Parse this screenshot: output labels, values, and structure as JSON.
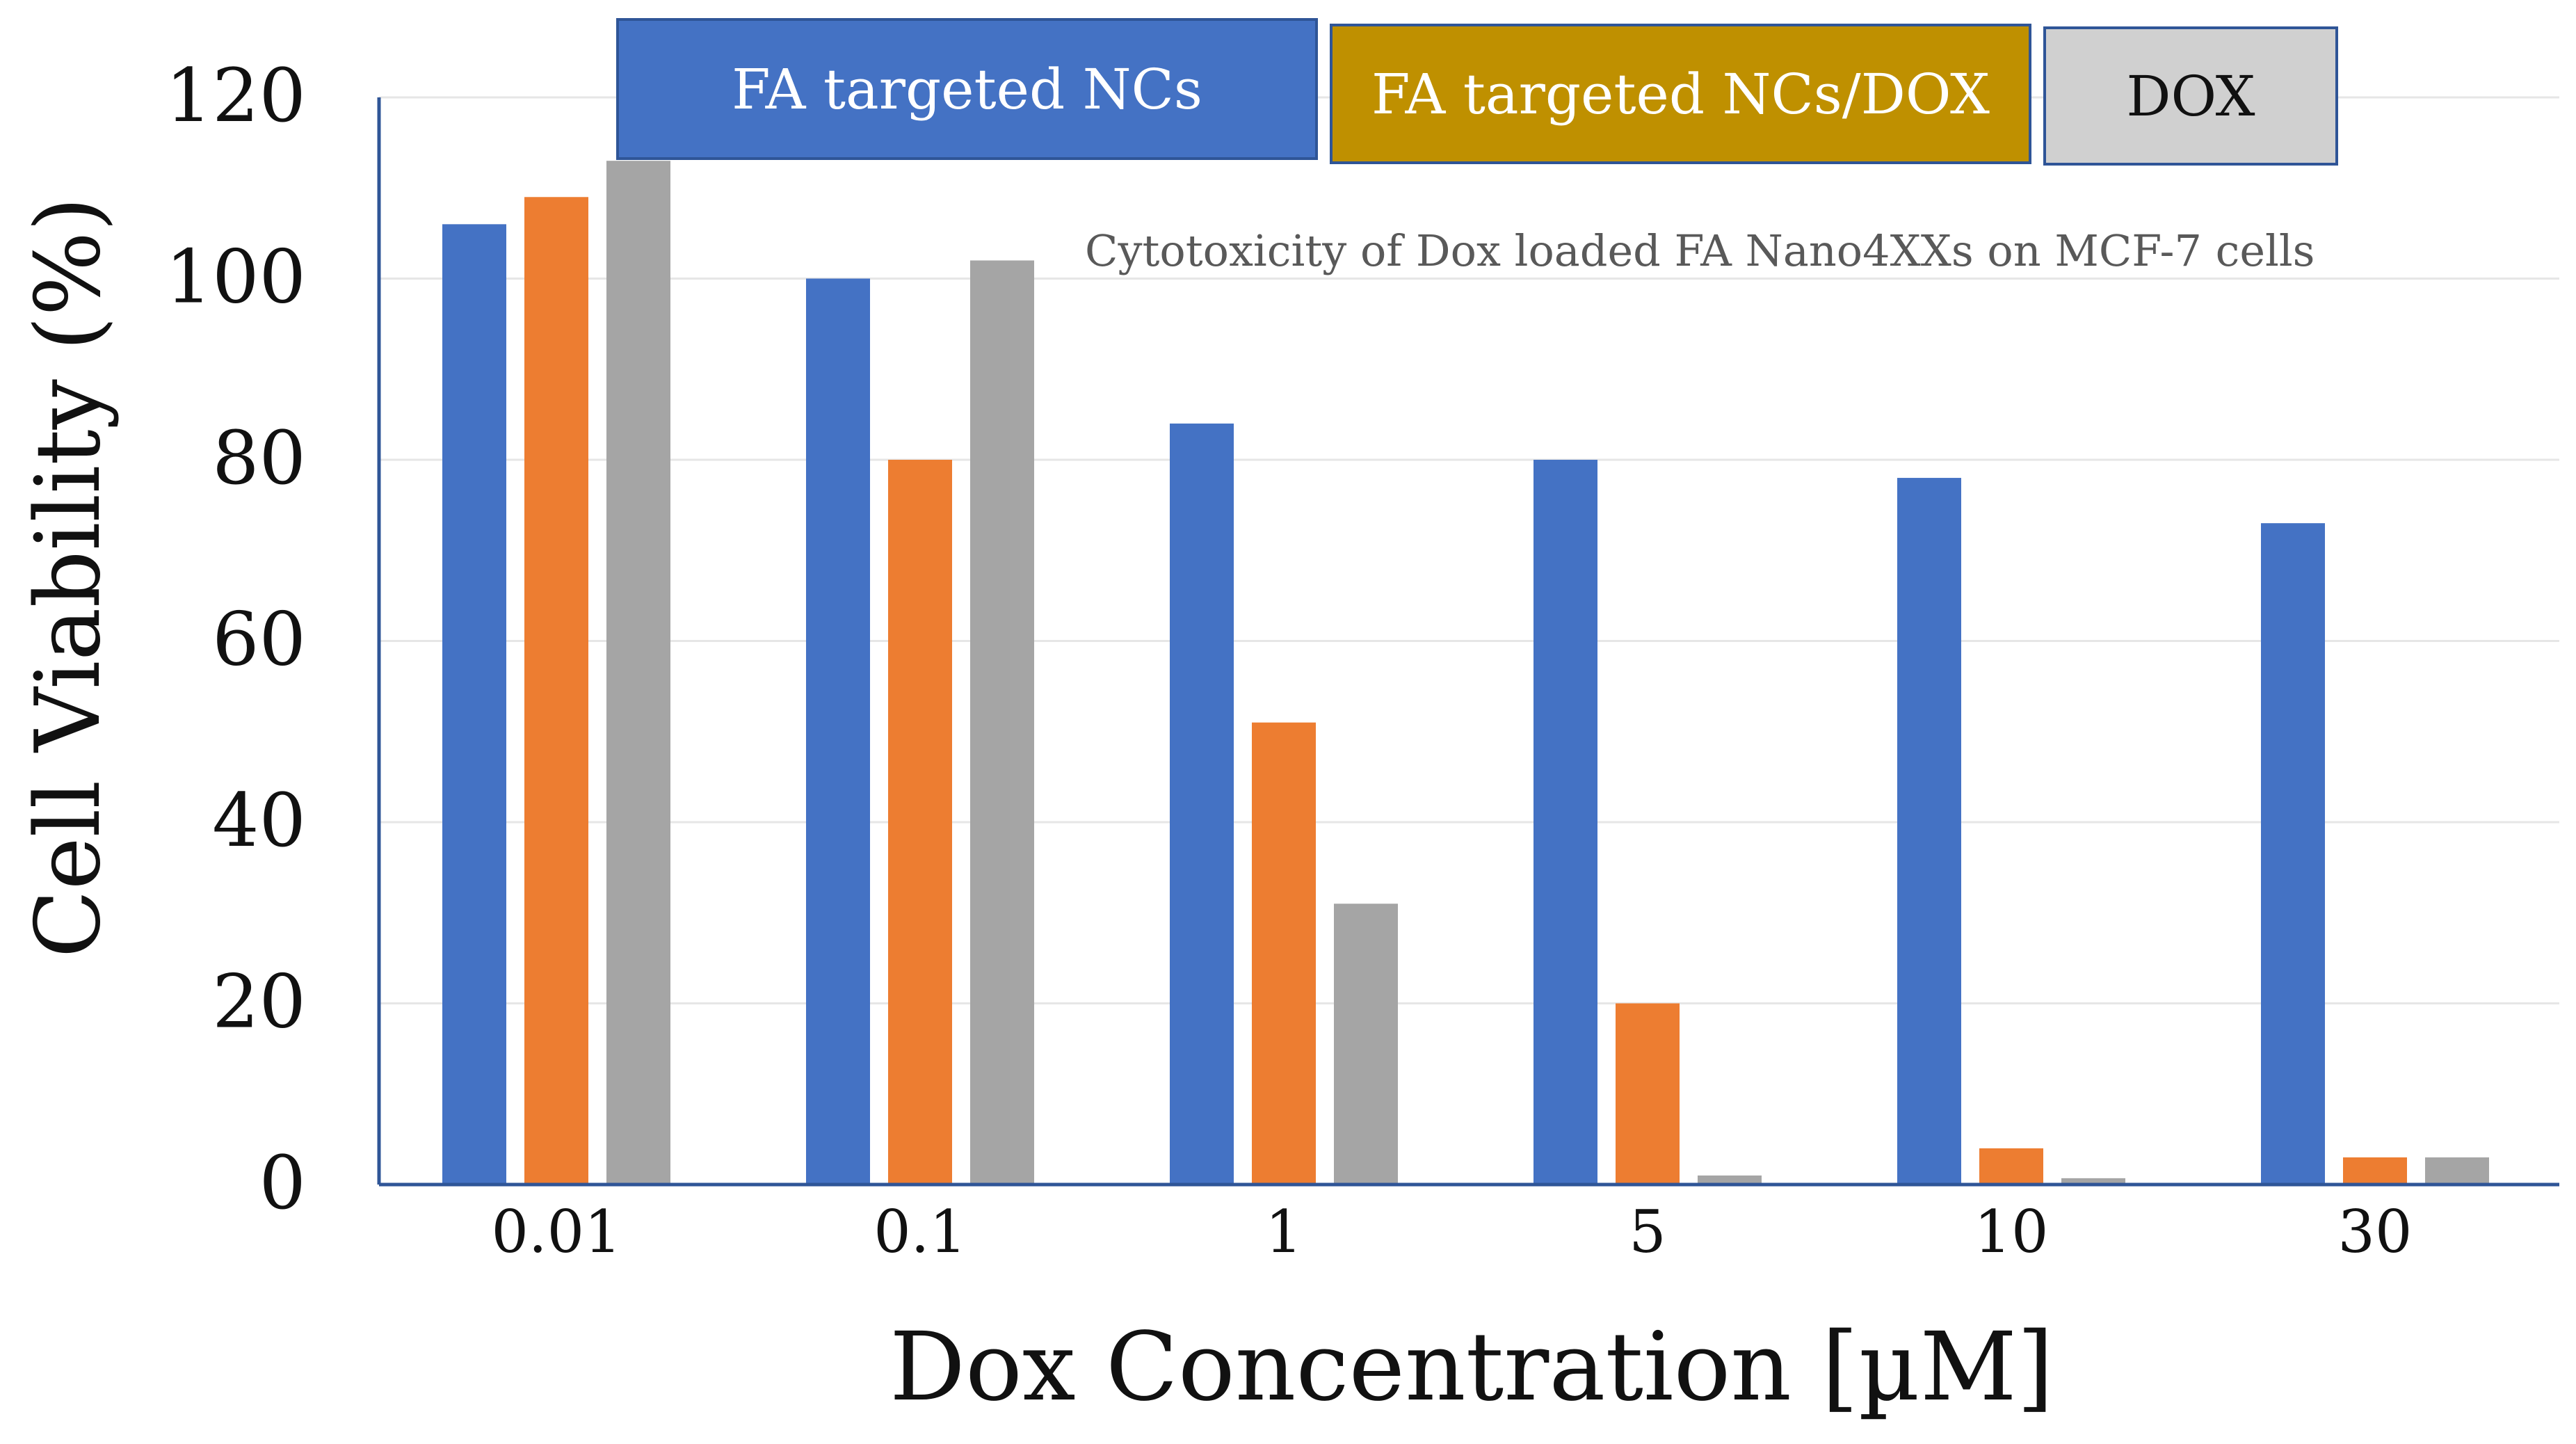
{
  "chart_data": {
    "type": "bar",
    "title": "Cytotoxicity of Dox loaded FA Nano4XXs on MCF-7 cells",
    "xlabel": "Dox Concentration  [µM]",
    "ylabel": "Cell Viability  (%)",
    "ylim": [
      0,
      120
    ],
    "yticks": [
      "0",
      "20",
      "40",
      "60",
      "80",
      "100",
      "120"
    ],
    "categories": [
      "0.01",
      "0.1",
      "1",
      "5",
      "10",
      "30"
    ],
    "grid": true,
    "legend_position": "top",
    "series": [
      {
        "name": "FA targeted NCs",
        "color": "#4472C4",
        "values": [
          106,
          100,
          84,
          80,
          78,
          73
        ]
      },
      {
        "name": "FA targeted NCs/DOX",
        "color": "#ED7D31",
        "values": [
          109,
          80,
          51,
          20,
          4,
          3
        ]
      },
      {
        "name": "DOX",
        "color": "#A5A5A5",
        "values": [
          113,
          102,
          31,
          1,
          0.7,
          3
        ]
      }
    ],
    "legend_box_colors": [
      "#4472C4",
      "#BF9000",
      "#D0D0D0"
    ],
    "legend_text_colors": [
      "#ffffff",
      "#ffffff",
      "#111111"
    ]
  }
}
